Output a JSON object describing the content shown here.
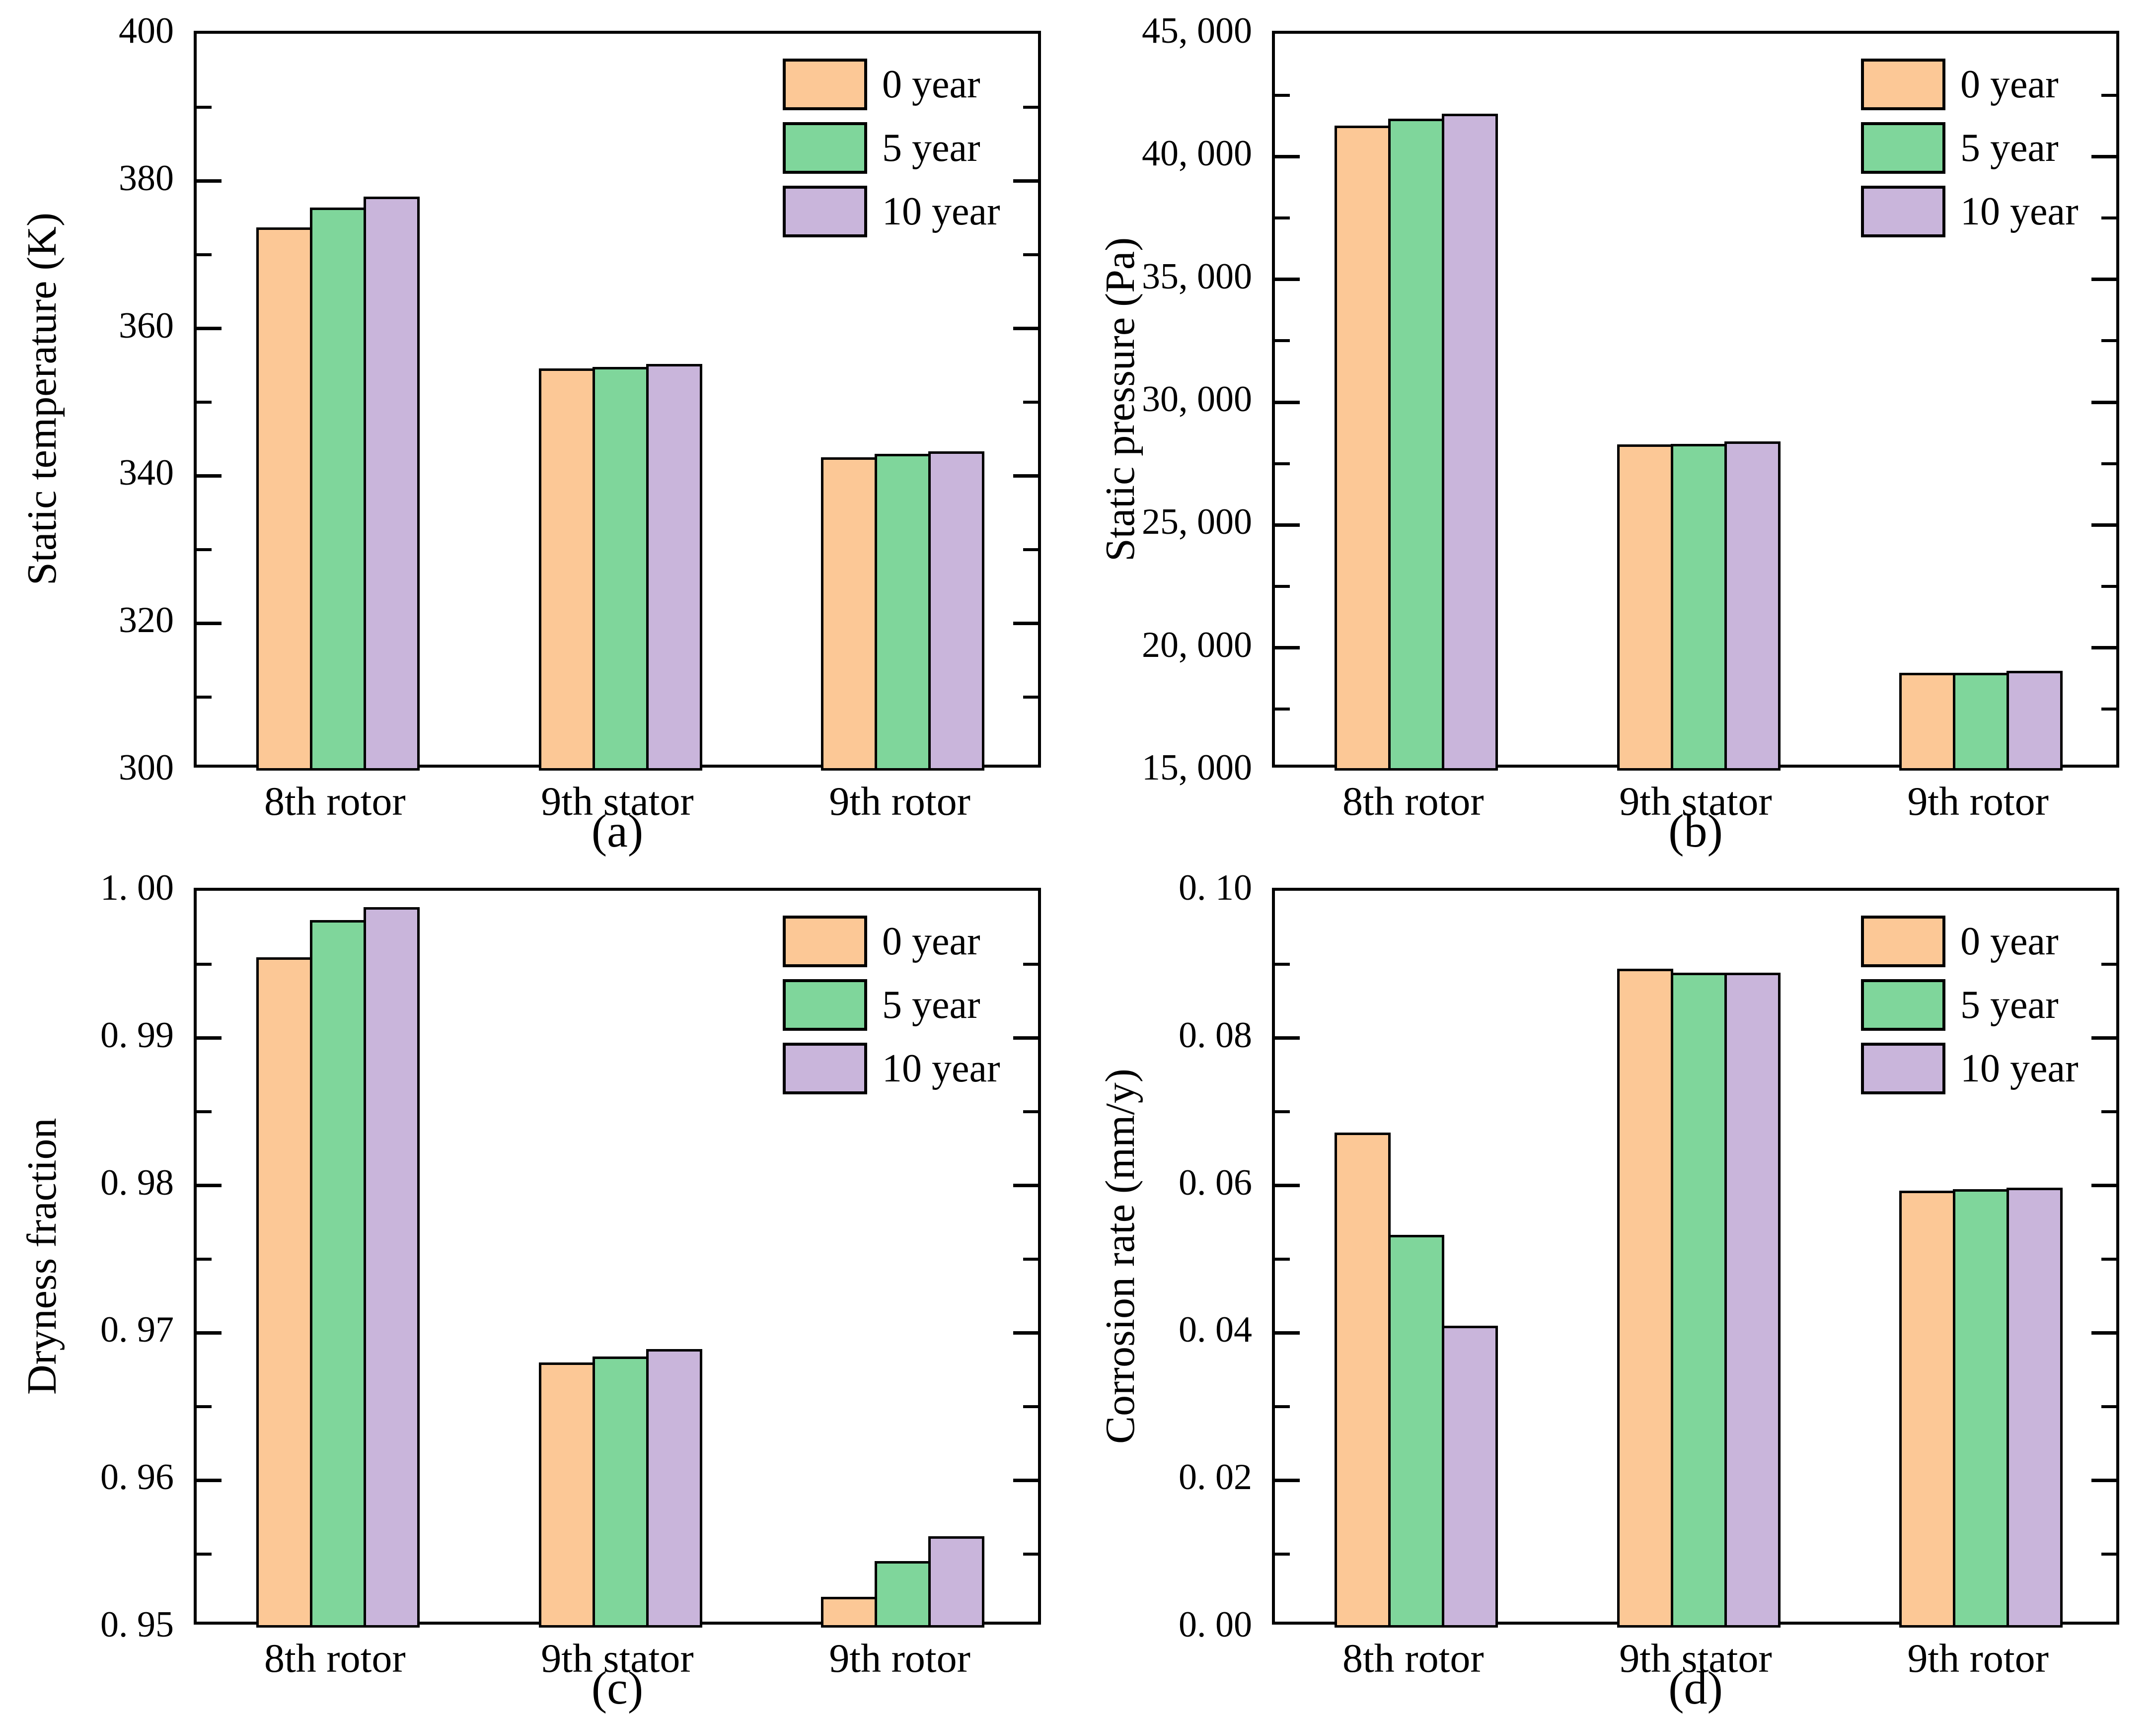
{
  "figure": {
    "background": "#ffffff",
    "series_colors": {
      "orange": "#FCC896",
      "green": "#7FD69B",
      "purple": "#C9B5DB"
    },
    "legend_items": [
      "0 year",
      "5 year",
      "10 year"
    ]
  },
  "chart_data": [
    {
      "id": "a",
      "type": "bar",
      "ylabel": "Static temperature (K)",
      "caption": "(a)",
      "legend_position": "top-right",
      "grid": false,
      "categories": [
        "8th rotor",
        "9th stator",
        "9th rotor"
      ],
      "ylim": [
        300,
        400
      ],
      "yticks": [
        {
          "v": 300,
          "label": "300"
        },
        {
          "v": 320,
          "label": "320"
        },
        {
          "v": 340,
          "label": "340"
        },
        {
          "v": 360,
          "label": "360"
        },
        {
          "v": 380,
          "label": "380"
        },
        {
          "v": 400,
          "label": "400"
        }
      ],
      "yminor": [
        310,
        330,
        350,
        370,
        390
      ],
      "series": [
        {
          "name": "0 year",
          "color": "#FCC896",
          "values": [
            373.7,
            354.6,
            342.5
          ]
        },
        {
          "name": "5 year",
          "color": "#7FD69B",
          "values": [
            376.4,
            354.8,
            343.0
          ]
        },
        {
          "name": "10 year",
          "color": "#C9B5DB",
          "values": [
            377.9,
            355.2,
            343.3
          ]
        }
      ]
    },
    {
      "id": "b",
      "type": "bar",
      "ylabel": "Static pressure (Pa)",
      "caption": "(b)",
      "legend_position": "top-right",
      "grid": false,
      "categories": [
        "8th rotor",
        "9th stator",
        "9th rotor"
      ],
      "ylim": [
        15000,
        45000
      ],
      "yticks": [
        {
          "v": 15000,
          "label": "15, 000"
        },
        {
          "v": 20000,
          "label": "20, 000"
        },
        {
          "v": 25000,
          "label": "25, 000"
        },
        {
          "v": 30000,
          "label": "30, 000"
        },
        {
          "v": 35000,
          "label": "35, 000"
        },
        {
          "v": 40000,
          "label": "40, 000"
        },
        {
          "v": 45000,
          "label": "45, 000"
        }
      ],
      "yminor": [
        17500,
        22500,
        27500,
        32500,
        37500,
        42500
      ],
      "series": [
        {
          "name": "0 year",
          "color": "#FCC896",
          "values": [
            41250,
            28280,
            18980
          ]
        },
        {
          "name": "5 year",
          "color": "#7FD69B",
          "values": [
            41550,
            28310,
            18990
          ]
        },
        {
          "name": "10 year",
          "color": "#C9B5DB",
          "values": [
            41750,
            28400,
            19070
          ]
        }
      ]
    },
    {
      "id": "c",
      "type": "bar",
      "ylabel": "Dryness fraction",
      "caption": "(c)",
      "legend_position": "top-right",
      "grid": false,
      "categories": [
        "8th rotor",
        "9th stator",
        "9th rotor"
      ],
      "ylim": [
        0.95,
        1.0
      ],
      "yticks": [
        {
          "v": 0.95,
          "label": "0. 95"
        },
        {
          "v": 0.96,
          "label": "0. 96"
        },
        {
          "v": 0.97,
          "label": "0. 97"
        },
        {
          "v": 0.98,
          "label": "0. 98"
        },
        {
          "v": 0.99,
          "label": "0. 99"
        },
        {
          "v": 1.0,
          "label": "1. 00"
        }
      ],
      "yminor": [
        0.955,
        0.965,
        0.975,
        0.985,
        0.995
      ],
      "series": [
        {
          "name": "0 year",
          "color": "#FCC896",
          "values": [
            0.9955,
            0.968,
            0.9521
          ]
        },
        {
          "name": "5 year",
          "color": "#7FD69B",
          "values": [
            0.998,
            0.9684,
            0.9545
          ]
        },
        {
          "name": "10 year",
          "color": "#C9B5DB",
          "values": [
            0.9989,
            0.9689,
            0.9562
          ]
        }
      ]
    },
    {
      "id": "d",
      "type": "bar",
      "ylabel": "Corrosion rate (mm/y)",
      "caption": "(d)",
      "legend_position": "top-right",
      "grid": false,
      "categories": [
        "8th rotor",
        "9th stator",
        "9th rotor"
      ],
      "ylim": [
        0.0,
        0.1
      ],
      "yticks": [
        {
          "v": 0.0,
          "label": "0. 00"
        },
        {
          "v": 0.02,
          "label": "0. 02"
        },
        {
          "v": 0.04,
          "label": "0. 04"
        },
        {
          "v": 0.06,
          "label": "0. 06"
        },
        {
          "v": 0.08,
          "label": "0. 08"
        },
        {
          "v": 0.1,
          "label": "0. 10"
        }
      ],
      "yminor": [
        0.01,
        0.03,
        0.05,
        0.07,
        0.09
      ],
      "series": [
        {
          "name": "0 year",
          "color": "#FCC896",
          "values": [
            0.0672,
            0.0894,
            0.0593
          ]
        },
        {
          "name": "5 year",
          "color": "#7FD69B",
          "values": [
            0.0533,
            0.0889,
            0.0595
          ]
        },
        {
          "name": "10 year",
          "color": "#C9B5DB",
          "values": [
            0.041,
            0.0889,
            0.0597
          ]
        }
      ]
    }
  ]
}
